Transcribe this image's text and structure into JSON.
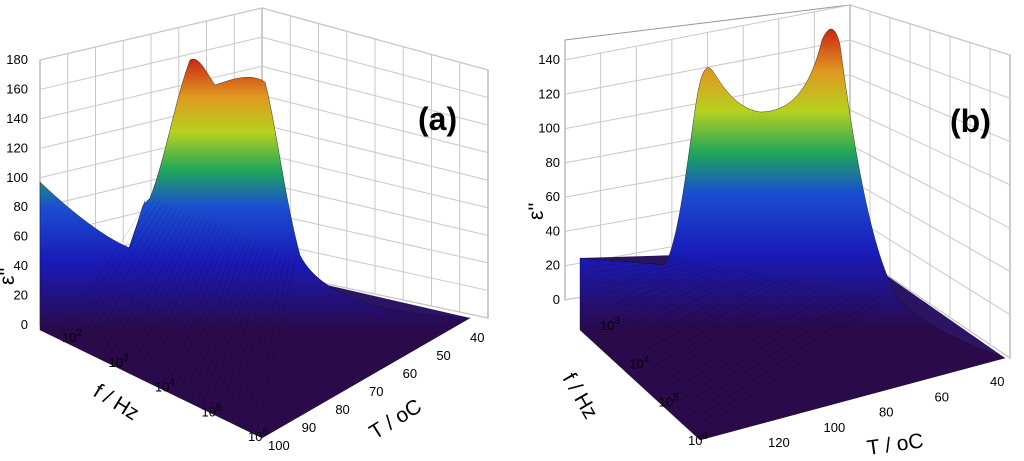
{
  "chart_data": [
    {
      "type": "surface",
      "panel_label": "(a)",
      "zlabel": "ε''",
      "zlim": [
        0,
        180
      ],
      "z_ticks": [
        "0",
        "20",
        "40",
        "60",
        "80",
        "100",
        "120",
        "140",
        "160",
        "180"
      ],
      "xlabel": "f / Hz",
      "x_ticks": [
        {
          "base": "10",
          "exp": "2"
        },
        {
          "base": "10",
          "exp": "3"
        },
        {
          "base": "10",
          "exp": "4"
        },
        {
          "base": "10",
          "exp": "5"
        },
        {
          "base": "10",
          "exp": "6"
        }
      ],
      "ylabel": "T / oC",
      "y_ticks": [
        "100",
        "90",
        "80",
        "70",
        "60",
        "50",
        "40"
      ],
      "features": {
        "main_peak": {
          "T": 75,
          "f": 10000,
          "value": 170
        },
        "shoulder_peak": {
          "T": 66,
          "f": 10000,
          "value": 152
        },
        "low_freq_edge_value": 100
      }
    },
    {
      "type": "surface",
      "panel_label": "(b)",
      "zlabel": "ε''",
      "zlim": [
        0,
        140
      ],
      "z_ticks": [
        "0",
        "20",
        "40",
        "60",
        "80",
        "100",
        "120",
        "140"
      ],
      "xlabel": "f / Hz",
      "x_ticks": [
        {
          "base": "10",
          "exp": "3"
        },
        {
          "base": "10",
          "exp": "4"
        },
        {
          "base": "10",
          "exp": "5"
        },
        {
          "base": "10",
          "exp": "6"
        }
      ],
      "ylabel": "T / oC",
      "y_ticks": [
        "120",
        "100",
        "80",
        "60",
        "40"
      ],
      "features": {
        "first_peak": {
          "T": 120,
          "f": 10000,
          "value": 132
        },
        "second_peak": {
          "T": 80,
          "f": 10000,
          "value": 150
        },
        "low_freq_edge_value": 25
      }
    }
  ]
}
